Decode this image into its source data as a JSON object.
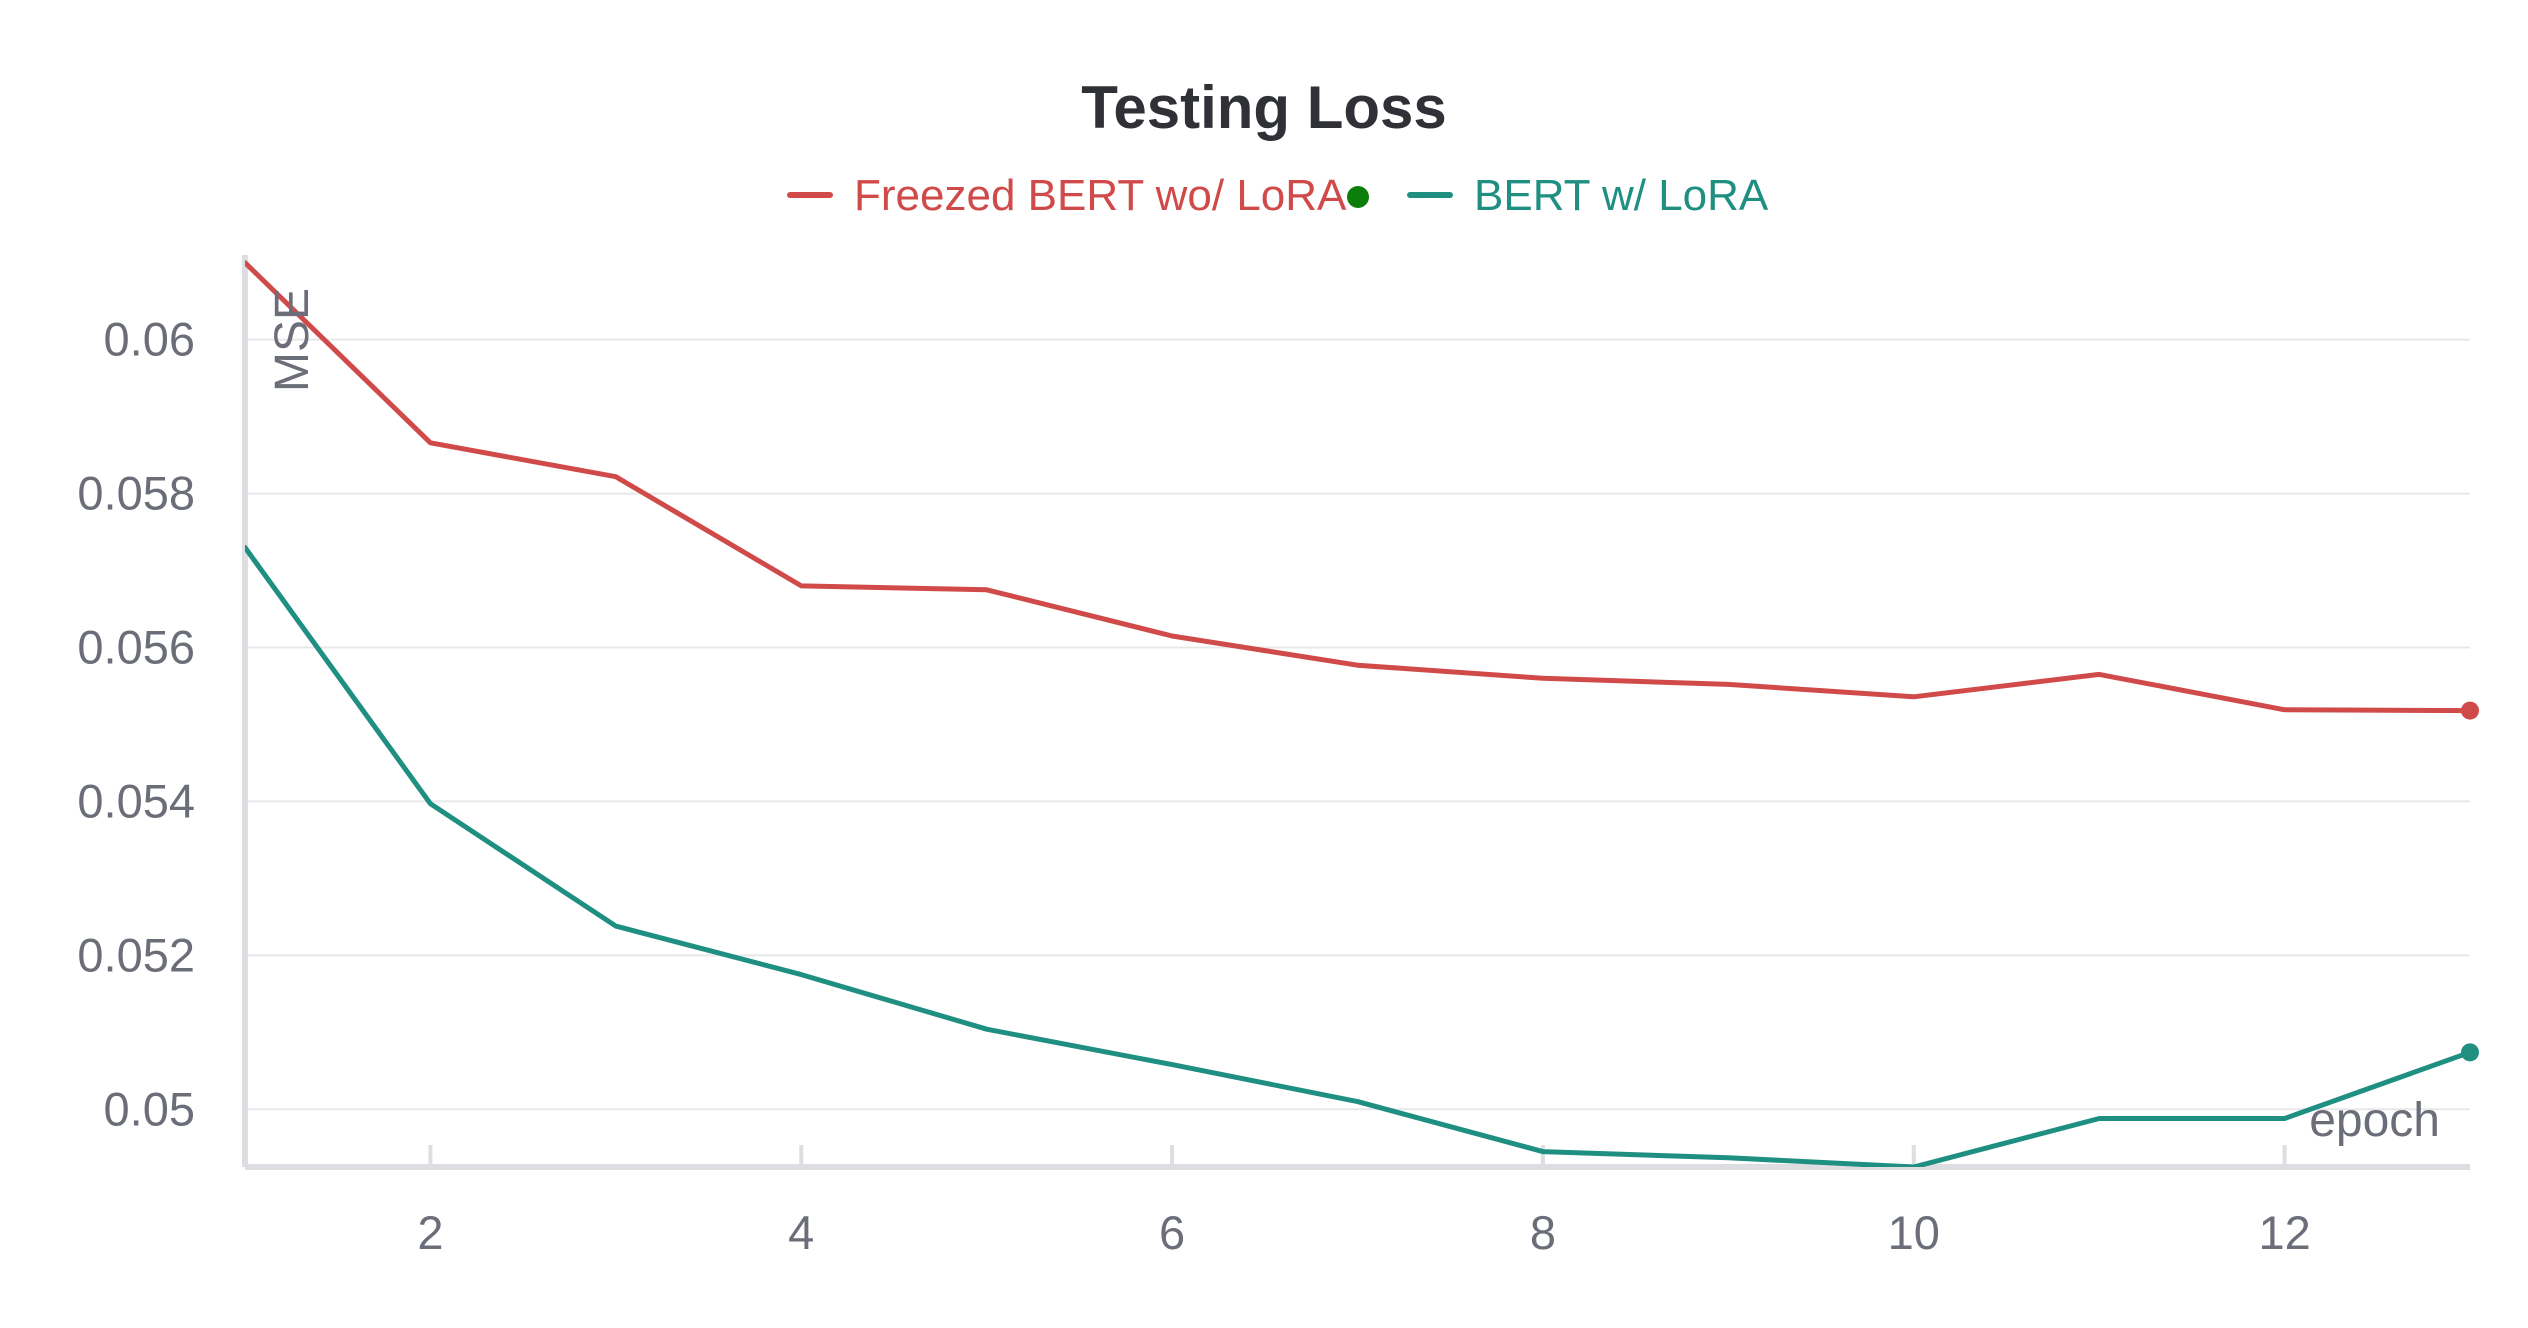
{
  "chart_data": {
    "type": "line",
    "title": "Testing Loss",
    "xlabel": "epoch",
    "ylabel": "MSE",
    "x": [
      1,
      2,
      3,
      4,
      5,
      6,
      7,
      8,
      9,
      10,
      11,
      12,
      13
    ],
    "xlim": [
      1,
      13
    ],
    "ylim": [
      0.04925,
      0.0611
    ],
    "xticks": [
      2,
      4,
      6,
      8,
      10,
      12
    ],
    "yticks": [
      0.05,
      0.052,
      0.054,
      0.056,
      0.058,
      0.06
    ],
    "ytick_labels": [
      "0.05",
      "0.052",
      "0.054",
      "0.056",
      "0.058",
      "0.06"
    ],
    "xtick_labels": [
      "2",
      "4",
      "6",
      "8",
      "10",
      "12"
    ],
    "grid": "horizontal",
    "legend_position": "top-center",
    "series": [
      {
        "name": "Freezed BERT wo/ LoRA",
        "color": "#d04a4a",
        "values": [
          0.061,
          0.05866,
          0.05822,
          0.0568,
          0.05675,
          0.05615,
          0.05577,
          0.0556,
          0.05552,
          0.05536,
          0.05565,
          0.05519,
          0.05518
        ]
      },
      {
        "name": "BERT w/ LoRA",
        "color": "#1f8f82",
        "values": [
          0.0573,
          0.05397,
          0.05238,
          0.05175,
          0.05104,
          0.05058,
          0.0501,
          0.04945,
          0.04937,
          0.04925,
          0.04988,
          0.04988,
          0.05074
        ]
      }
    ],
    "legend_marker_color": "#0a7d0a"
  }
}
